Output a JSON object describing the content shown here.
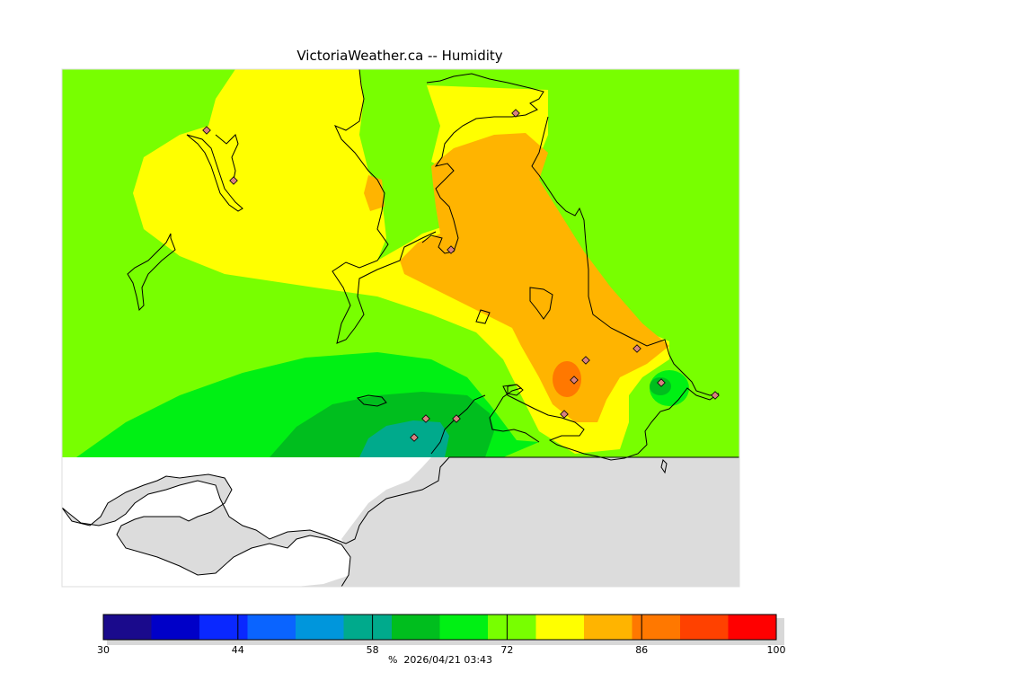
{
  "title": "VictoriaWeather.ca -- Humidity",
  "footer": {
    "unit": "%",
    "timestamp": "2026/04/21 03:43"
  },
  "colors": {
    "land_nodata": "#dcdcdc",
    "ocean": "#ffffff",
    "station_marker": "#d98080"
  },
  "colorbar": {
    "min": 30,
    "max": 100,
    "tick_labels": [
      "30",
      "44",
      "58",
      "72",
      "86",
      "100"
    ],
    "bins": [
      {
        "from": 30,
        "to": 35,
        "color": "#1a0a8c"
      },
      {
        "from": 35,
        "to": 40,
        "color": "#0000c8"
      },
      {
        "from": 40,
        "to": 45,
        "color": "#0a28ff"
      },
      {
        "from": 45,
        "to": 50,
        "color": "#0a64ff"
      },
      {
        "from": 50,
        "to": 55,
        "color": "#0096dc"
      },
      {
        "from": 55,
        "to": 60,
        "color": "#00aa8c"
      },
      {
        "from": 60,
        "to": 65,
        "color": "#00be1e"
      },
      {
        "from": 65,
        "to": 70,
        "color": "#00f014"
      },
      {
        "from": 70,
        "to": 75,
        "color": "#78ff00"
      },
      {
        "from": 75,
        "to": 80,
        "color": "#ffff00"
      },
      {
        "from": 80,
        "to": 85,
        "color": "#ffb400"
      },
      {
        "from": 85,
        "to": 90,
        "color": "#ff7800"
      },
      {
        "from": 90,
        "to": 95,
        "color": "#ff4100"
      },
      {
        "from": 95,
        "to": 100,
        "color": "#ff0000"
      }
    ]
  }
}
